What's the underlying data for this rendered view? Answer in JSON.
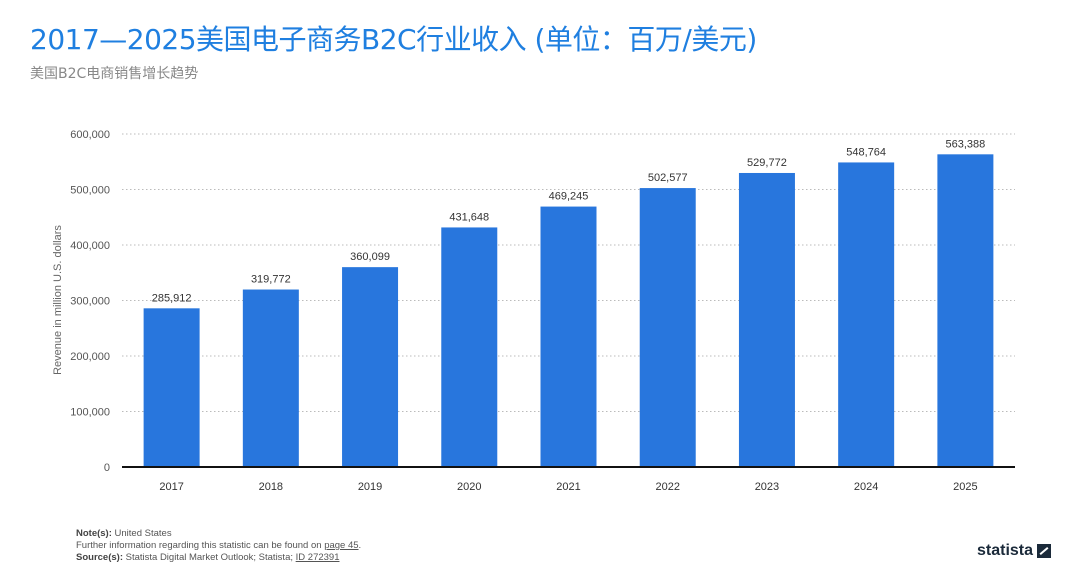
{
  "header": {
    "title": "2017—2025美国电子商务B2C行业收入 (单位：百万/美元)",
    "subtitle": "美国B2C电商销售增长趋势"
  },
  "chart_data": {
    "type": "bar",
    "categories": [
      "2017",
      "2018",
      "2019",
      "2020",
      "2021",
      "2022",
      "2023",
      "2024",
      "2025"
    ],
    "values": [
      285912,
      319772,
      360099,
      431648,
      469245,
      502577,
      529772,
      548764,
      563388
    ],
    "data_labels": [
      "285,912",
      "319,772",
      "360,099",
      "431,648",
      "469,245",
      "502,577",
      "529,772",
      "548,764",
      "563,388"
    ],
    "ylabel": "Revenue in million U.S. dollars",
    "xlabel": "",
    "ylim": [
      0,
      600000
    ],
    "yticks": [
      0,
      100000,
      200000,
      300000,
      400000,
      500000,
      600000
    ],
    "ytick_labels": [
      "0",
      "100,000",
      "200,000",
      "300,000",
      "400,000",
      "500,000",
      "600,000"
    ],
    "grid": true,
    "bar_color": "#2876dd"
  },
  "footer": {
    "note_label": "Note(s):",
    "note_text": "United States",
    "further_text": "Further information regarding this statistic can be found on",
    "further_link": "page 45",
    "further_end": ".",
    "source_label": "Source(s):",
    "source_text": "Statista Digital Market Outlook; Statista;",
    "source_link": "ID 272391",
    "logo": "statista"
  }
}
